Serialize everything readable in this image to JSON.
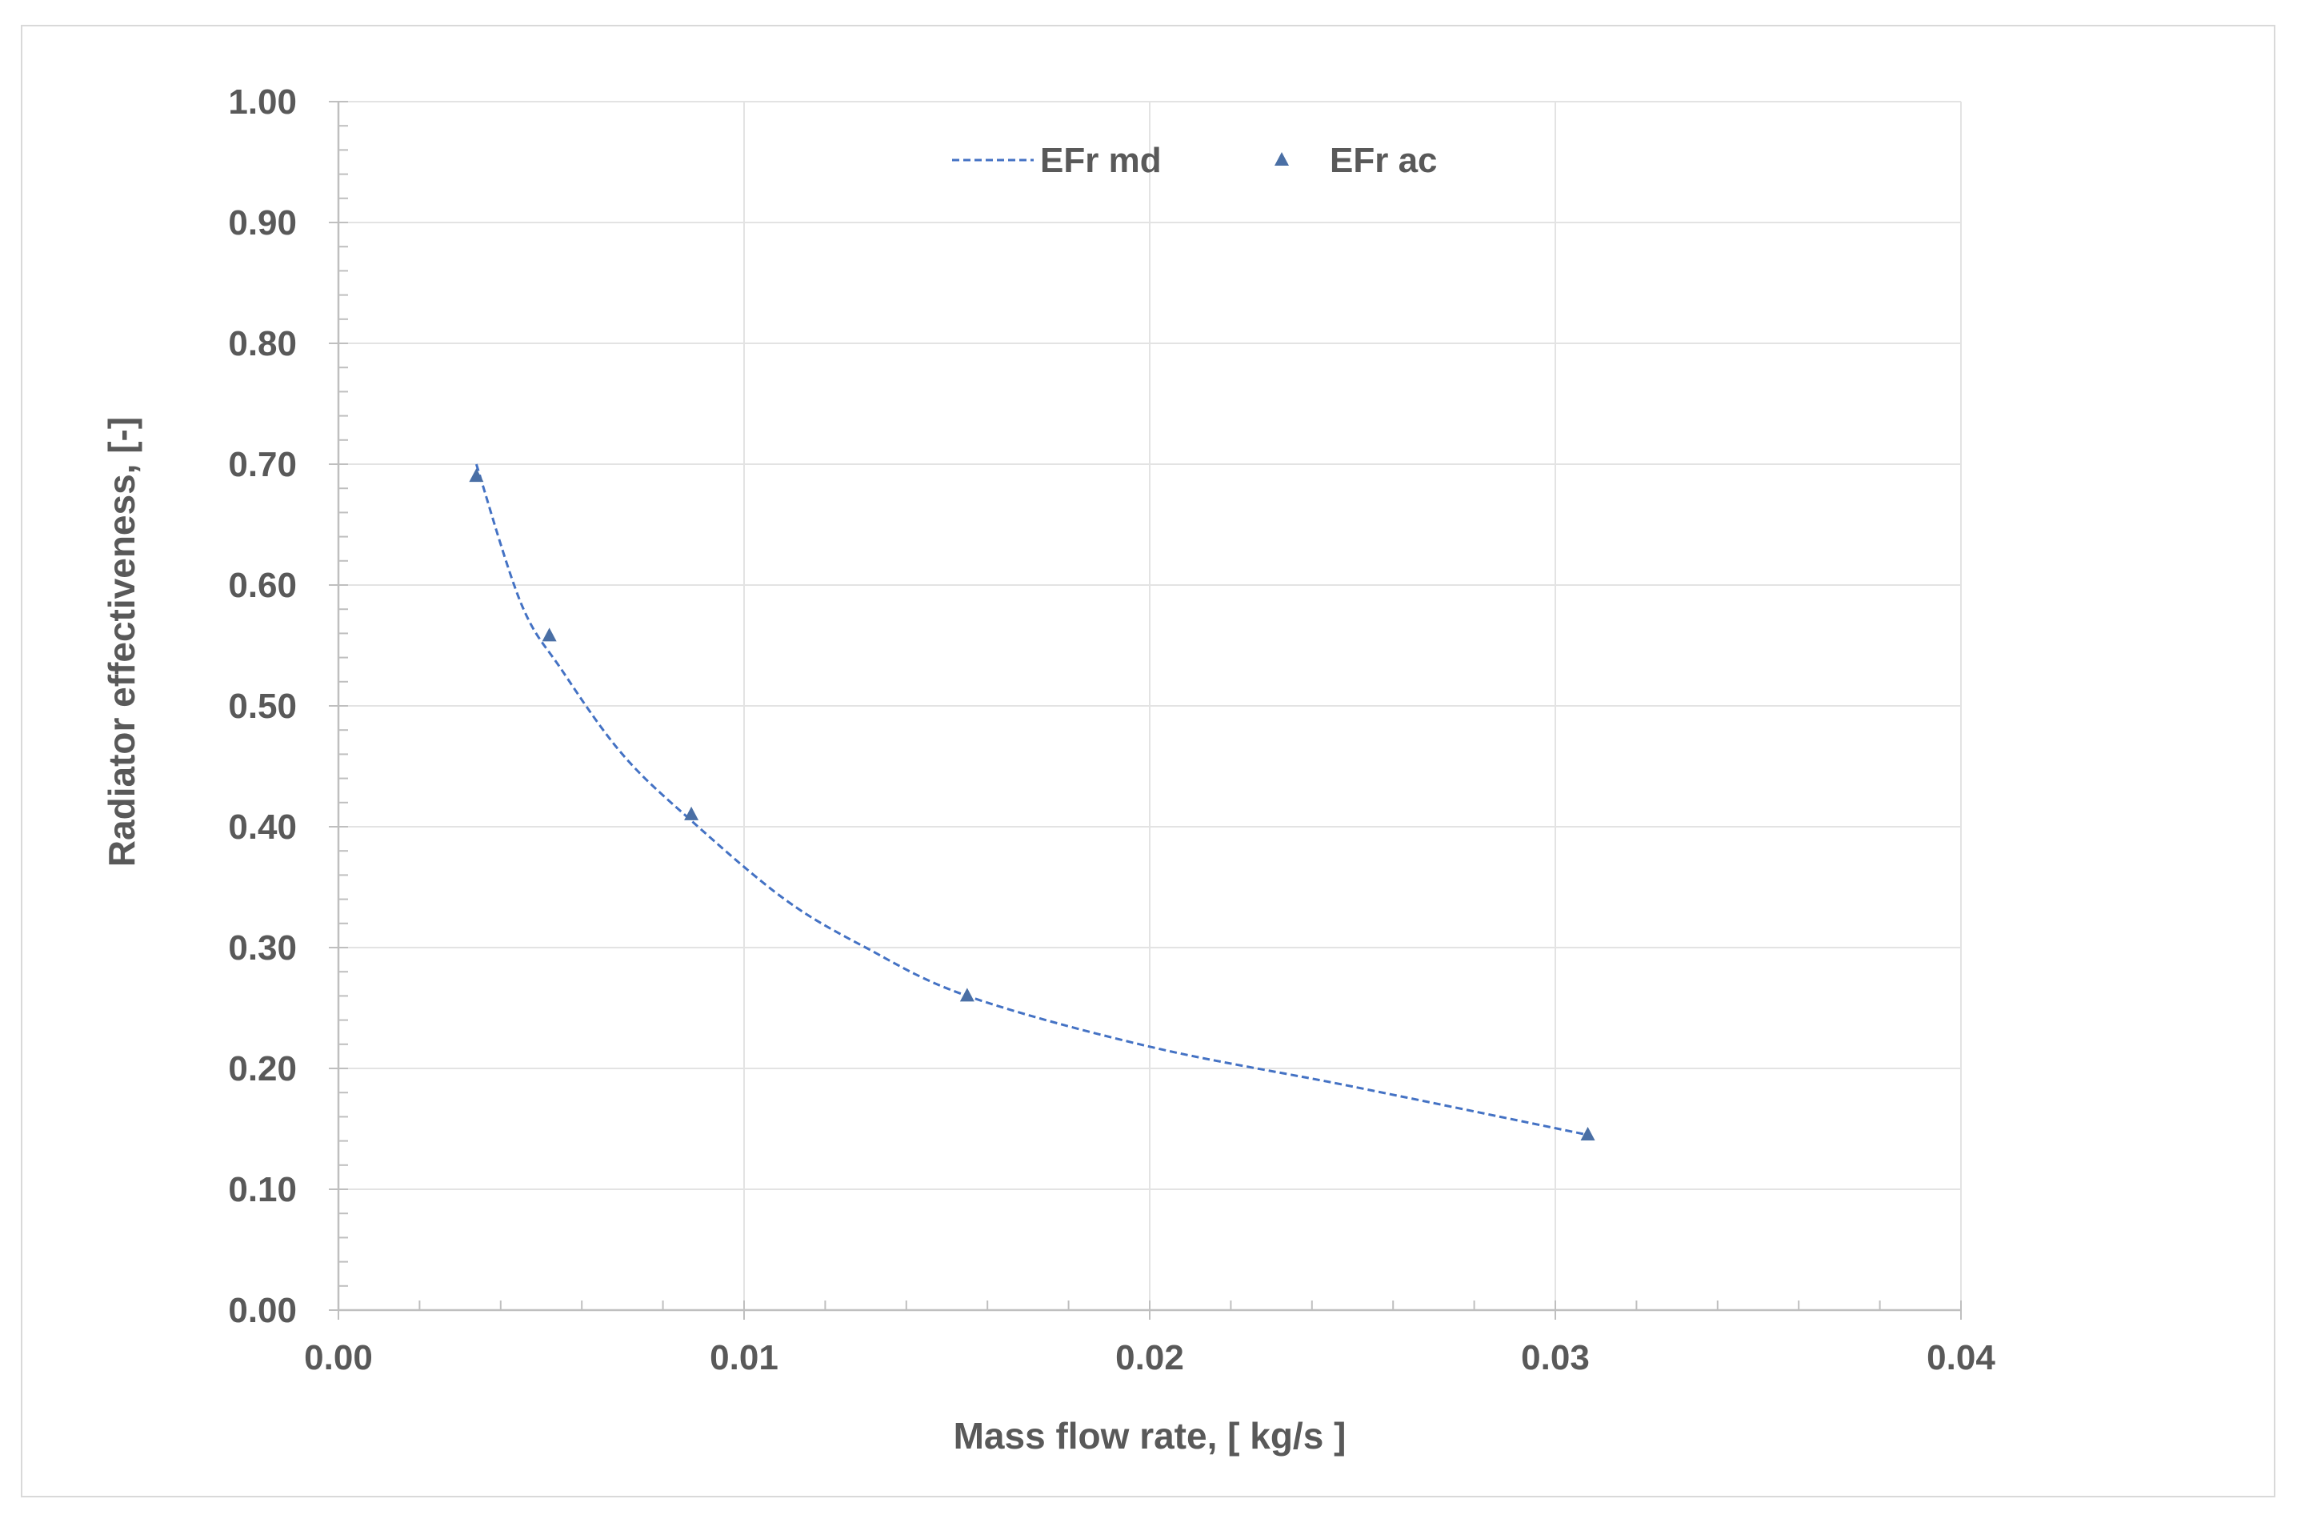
{
  "chart_data": {
    "type": "scatter",
    "xlabel": "Mass flow rate, [ kg/s ]",
    "ylabel": "Radiator effectiveness, [-]",
    "xlim": [
      0,
      0.04
    ],
    "ylim": [
      0,
      1.0
    ],
    "x_ticks": [
      "0.00",
      "0.01",
      "0.02",
      "0.03",
      "0.04"
    ],
    "y_ticks": [
      "0.00",
      "0.10",
      "0.20",
      "0.30",
      "0.40",
      "0.50",
      "0.60",
      "0.70",
      "0.80",
      "0.90",
      "1.00"
    ],
    "grid": true,
    "legend_position": "top-center",
    "series": [
      {
        "name": "EFr md",
        "style": "dashed-line",
        "color": "#4472c4",
        "x": [
          0.0034,
          0.0045,
          0.0055,
          0.007,
          0.0087,
          0.011,
          0.013,
          0.0155,
          0.02,
          0.025,
          0.0308
        ],
        "y": [
          0.7,
          0.585,
          0.53,
          0.46,
          0.405,
          0.34,
          0.3,
          0.26,
          0.218,
          0.185,
          0.145
        ]
      },
      {
        "name": "EFr ac",
        "style": "triangle-markers",
        "color": "#4a6fa5",
        "x": [
          0.0034,
          0.0052,
          0.0087,
          0.0155,
          0.0308
        ],
        "y": [
          0.69,
          0.558,
          0.41,
          0.26,
          0.145
        ]
      }
    ]
  }
}
